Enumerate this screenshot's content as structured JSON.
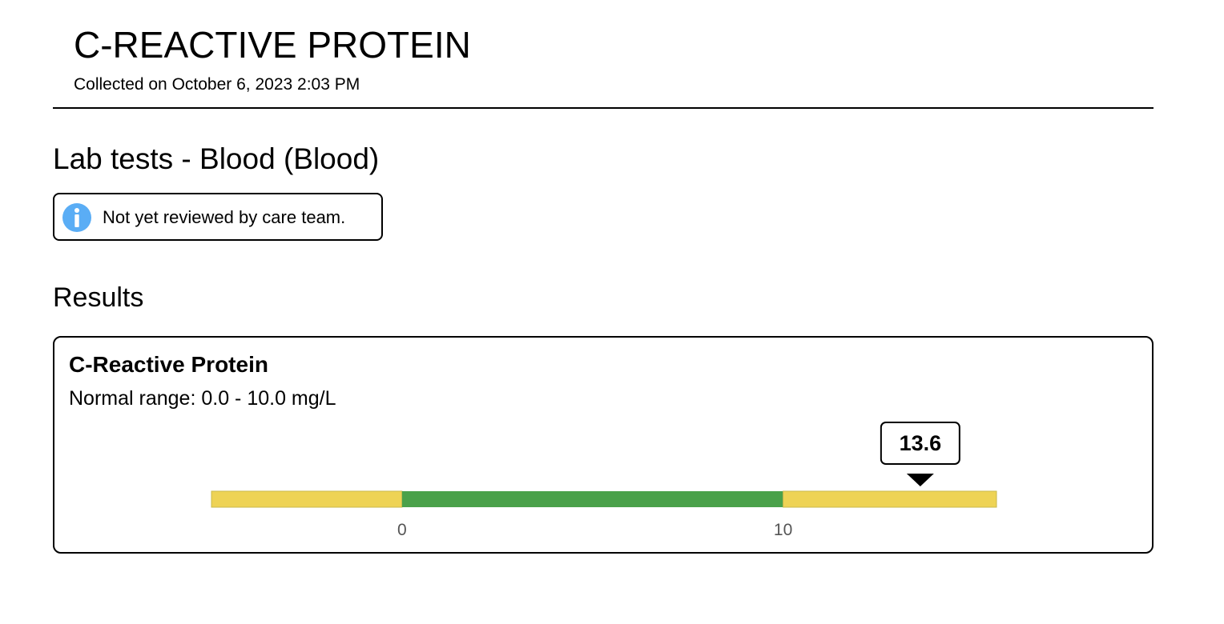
{
  "header": {
    "title": "C-REACTIVE PROTEIN",
    "collected": "Collected on October 6, 2023 2:03 PM"
  },
  "section": {
    "title": "Lab tests - Blood (Blood)"
  },
  "review_notice": {
    "icon": "info-icon",
    "text": "Not yet reviewed by care team."
  },
  "results": {
    "title": "Results",
    "items": [
      {
        "name": "C-Reactive Protein",
        "normal_range": "Normal range: 0.0 - 10.0 mg/L",
        "value": 13.6,
        "value_label": "13.6",
        "range_low": 0,
        "range_high": 10,
        "scale_min": -5,
        "scale_max": 15.6,
        "ticks": [
          {
            "value": 0,
            "label": "0"
          },
          {
            "value": 10,
            "label": "10"
          }
        ],
        "colors": {
          "normal": "#4aa14a",
          "out_of_range": "#eed355",
          "bar_border": "#c9b84a"
        }
      }
    ]
  },
  "colors": {
    "info_icon": "#5aadf5"
  }
}
